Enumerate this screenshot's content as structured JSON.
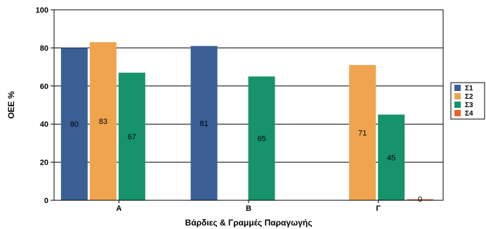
{
  "chart_data": {
    "type": "bar",
    "title": "",
    "xlabel": "Βάρδιες & Γραμμές Παραγωγής",
    "ylabel": "OEE %",
    "ylim": [
      0,
      100
    ],
    "yticks": [
      0,
      20,
      40,
      60,
      80,
      100
    ],
    "grid": true,
    "legend_position": "right",
    "categories": [
      "Α",
      "Β",
      "Γ"
    ],
    "series": [
      {
        "name": "Σ1",
        "color": "#3a5f95",
        "values": [
          80,
          81,
          null
        ]
      },
      {
        "name": "Σ2",
        "color": "#f0a44e",
        "values": [
          83,
          null,
          71
        ]
      },
      {
        "name": "Σ3",
        "color": "#16936b",
        "values": [
          67,
          65,
          45
        ]
      },
      {
        "name": "Σ4",
        "color": "#e8642a",
        "values": [
          null,
          null,
          0
        ]
      }
    ],
    "data_labels": [
      [
        "80",
        "83",
        "67",
        ""
      ],
      [
        "81",
        "",
        "65",
        ""
      ],
      [
        "",
        "71",
        "45",
        "0"
      ]
    ]
  }
}
